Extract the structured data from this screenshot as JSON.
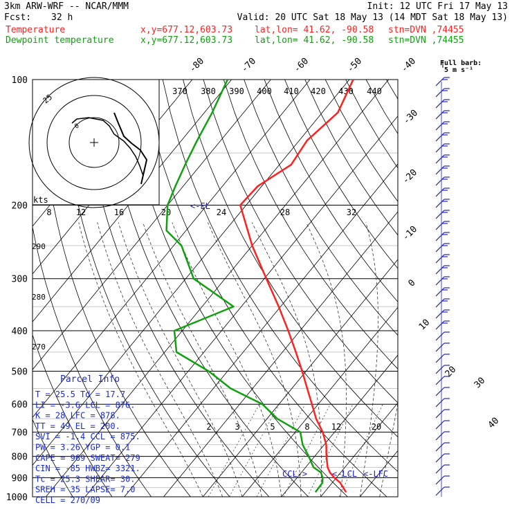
{
  "header": {
    "model": "3km ARW-WRF -- NCAR/MMM",
    "init": "Init: 12 UTC Fri 17 May 13",
    "fcst_label": "Fcst:",
    "fcst_value": "32 h",
    "valid": "Valid: 20 UTC Sat 18 May 13 (14 MDT Sat 18 May 13)",
    "temp_label": "Temperature",
    "dew_label": "Dewpoint temperature",
    "coords": "x,y=677.12,603.73",
    "latlon": "lat,lon= 41.62, -90.58",
    "station": "stn=DVN ,74455"
  },
  "colors": {
    "temperature": "#ff2020",
    "dewpoint": "#10a010",
    "barb": "#2020c0",
    "info_text": "#1a2bd0"
  },
  "barb_key": {
    "line1": "Full barb:",
    "line2": "5 m s⁻¹"
  },
  "hodograph": {
    "units": "kts",
    "ring_label": "25",
    "speed_ticks": [
      "8",
      "12",
      "16",
      "20",
      "24",
      "28",
      "32"
    ],
    "theta_labels": [
      "370",
      "380",
      "390",
      "400",
      "410",
      "420",
      "430",
      "440"
    ],
    "el_marker": "<-EL"
  },
  "mixing_ratio_labels": [
    "2",
    "3",
    "5",
    "8",
    "12",
    "20"
  ],
  "theta_e_labels": [
    "290",
    "280",
    "270"
  ],
  "level_markers": {
    "ccl": "CCL->",
    "lcl": "<-LCL",
    "lfc": "<-LFC"
  },
  "parcel_info": {
    "title": "Parcel Info",
    "rows": [
      "T  =   25.5  Td =  17.7",
      "LI =   -3.6  LCL =  876.",
      "K  =    28   LFC =  878.",
      "TT =    49   EL  =  200.",
      "SVI =  -1.4  CCL =  875.",
      "PW =   3.26  YGP =   0.1",
      "CAPE =  969  SWEAT=  279",
      "CIN =   -85  HWBZ= 3321.",
      "Tc =   25.3  SHEAR=  30.",
      "SREH =   35  LAPSE=  7.0",
      "CELL = 270/09"
    ]
  },
  "chart_data": {
    "type": "line",
    "title": "",
    "ylabel": "",
    "y_scale": "log-pressure (hPa)",
    "y_ticks": [
      "100",
      "200",
      "300",
      "400",
      "500",
      "600",
      "700",
      "800",
      "900",
      "1000"
    ],
    "isotherm_labels": [
      "-80",
      "-70",
      "-60",
      "-50",
      "-40",
      "-30",
      "-20",
      "-10",
      "0",
      "10",
      "20",
      "30",
      "40"
    ],
    "grid": true,
    "series": [
      {
        "name": "Temperature",
        "pressure": [
          975,
          925,
          900,
          875,
          850,
          800,
          750,
          700,
          650,
          600,
          550,
          500,
          450,
          400,
          350,
          300,
          250,
          200,
          180,
          160,
          140,
          120,
          100
        ],
        "values": [
          25.5,
          22,
          19.5,
          17.3,
          15.6,
          13.0,
          10.5,
          7.0,
          2.5,
          -1.6,
          -6.1,
          -11.0,
          -16.6,
          -23.0,
          -30.5,
          -39.5,
          -50.0,
          -61.5,
          -61.0,
          -57.0,
          -58.0,
          -56.0,
          -59.0
        ]
      },
      {
        "name": "Dewpoint temperature",
        "pressure": [
          975,
          925,
          900,
          875,
          850,
          800,
          750,
          700,
          650,
          600,
          550,
          500,
          450,
          400,
          350,
          300,
          250,
          230,
          200,
          180,
          160,
          140,
          120,
          100
        ],
        "values": [
          17.7,
          17.5,
          16.5,
          15.0,
          12.0,
          8.5,
          4.5,
          1.3,
          -7.4,
          -14.2,
          -25.6,
          -34.8,
          -47.0,
          -52.0,
          -42.0,
          -58.0,
          -68.0,
          -75.0,
          -80.0,
          -82.0,
          -84.0,
          -86.0,
          -88.0,
          -91.0
        ]
      }
    ]
  }
}
